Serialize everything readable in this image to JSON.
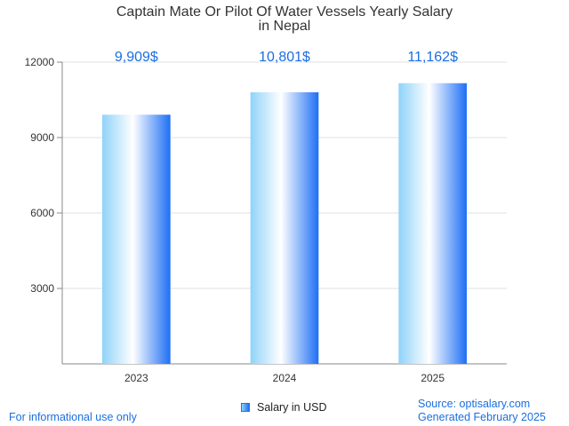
{
  "chart_data": {
    "type": "bar",
    "title_lines": [
      "Captain Mate Or Pilot Of Water Vessels Yearly Salary",
      "in Nepal"
    ],
    "categories": [
      "2023",
      "2024",
      "2025"
    ],
    "series": [
      {
        "name": "Salary in USD",
        "values": [
          9909,
          10801,
          11162
        ]
      }
    ],
    "data_labels": [
      "9,909$",
      "10,801$",
      "11,162$"
    ],
    "ylim": [
      0,
      12000
    ],
    "yticks": [
      3000,
      6000,
      9000,
      12000
    ],
    "grid": true,
    "legend_position": "bottom-center",
    "colors": {
      "bar_dark": "#1e6ff5",
      "bar_light": "#ffffff",
      "bar_mid": "#8fd3f9",
      "label": "#1a6fe0"
    }
  },
  "footer": {
    "left": "For informational use only",
    "source": "Source: optisalary.com",
    "generated": "Generated February 2025"
  }
}
